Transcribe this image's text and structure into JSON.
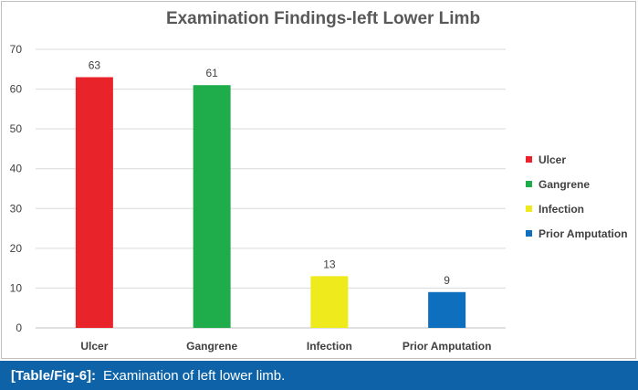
{
  "chart_data": {
    "type": "bar",
    "title": "Examination Findings-left Lower Limb",
    "xlabel": "",
    "ylabel": "",
    "categories": [
      "Ulcer",
      "Gangrene",
      "Infection",
      "Prior Amputation"
    ],
    "values": [
      63,
      61,
      13,
      9
    ],
    "colors": [
      "#e8232a",
      "#1fad4b",
      "#eeea1c",
      "#0e6fbf"
    ],
    "ylim": [
      0,
      70
    ],
    "yticks": [
      0,
      10,
      20,
      30,
      40,
      50,
      60,
      70
    ],
    "grid": true,
    "legend": {
      "position": "right",
      "entries": [
        "Ulcer",
        "Gangrene",
        "Infection",
        "Prior Amputation"
      ]
    }
  },
  "caption": {
    "label": "[Table/Fig-6]:",
    "text": "Examination of left lower limb.",
    "background": "#0e63a8"
  }
}
